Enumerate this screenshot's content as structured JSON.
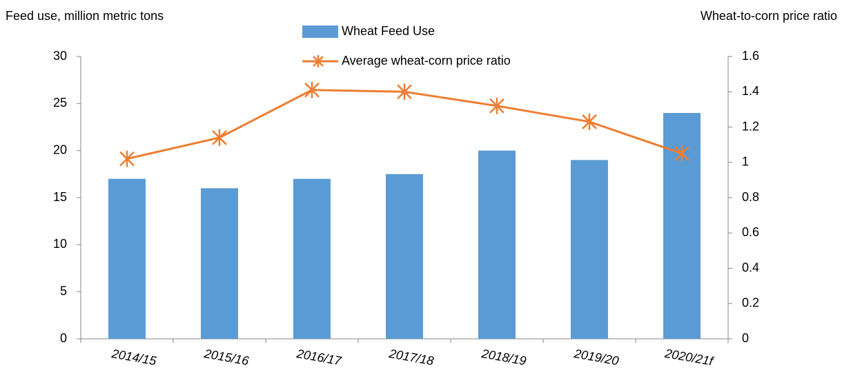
{
  "chart_data": {
    "type": "bar-line",
    "y_label": "Feed use, million metric tons",
    "y2_label": "Wheat-to-corn price ratio",
    "categories": [
      "2014/15",
      "2015/16",
      "2016/17",
      "2017/18",
      "2018/19",
      "2019/20",
      "2020/21f"
    ],
    "series": [
      {
        "name": "Wheat Feed Use",
        "type": "bar",
        "color": "#5b9bd5",
        "values": [
          17,
          16,
          17,
          17.5,
          20,
          19,
          24
        ]
      },
      {
        "name": "Average wheat-corn price ratio",
        "type": "line",
        "axis": "y2",
        "color": "#ed7d31",
        "values": [
          1.02,
          1.14,
          1.41,
          1.4,
          1.32,
          1.23,
          1.05
        ]
      }
    ],
    "ylim": [
      0,
      30
    ],
    "yticks": [
      0,
      5,
      10,
      15,
      20,
      25,
      30
    ],
    "y2lim": [
      0,
      1.6
    ],
    "y2ticks": [
      0,
      0.2,
      0.4,
      0.6,
      0.8,
      1,
      1.2,
      1.4,
      1.6
    ],
    "grid": false
  }
}
